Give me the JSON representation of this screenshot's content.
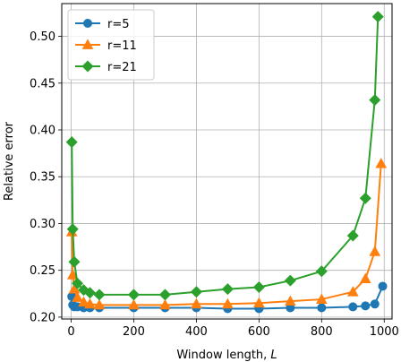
{
  "chart_data": {
    "type": "line",
    "xlabel": "Window length, ",
    "xlabel_var": "L",
    "ylabel": "Relative error",
    "xlim": [
      -30,
      1025
    ],
    "ylim": [
      0.198,
      0.535
    ],
    "xticks": [
      0,
      200,
      400,
      600,
      800,
      1000
    ],
    "xtick_labels": [
      "0",
      "200",
      "400",
      "600",
      "800",
      "1000"
    ],
    "yticks": [
      0.2,
      0.25,
      0.3,
      0.35,
      0.4,
      0.45,
      0.5
    ],
    "ytick_labels": [
      "0.20",
      "0.25",
      "0.30",
      "0.35",
      "0.40",
      "0.45",
      "0.50"
    ],
    "grid": true,
    "legend_position": "top-left",
    "series": [
      {
        "name": "r=5",
        "color": "#1f77b4",
        "marker": "circle",
        "points": [
          [
            2,
            0.222
          ],
          [
            5,
            0.213
          ],
          [
            10,
            0.211
          ],
          [
            20,
            0.211
          ],
          [
            40,
            0.21
          ],
          [
            60,
            0.21
          ],
          [
            90,
            0.21
          ],
          [
            200,
            0.21
          ],
          [
            300,
            0.21
          ],
          [
            400,
            0.21
          ],
          [
            500,
            0.209
          ],
          [
            600,
            0.209
          ],
          [
            700,
            0.21
          ],
          [
            800,
            0.21
          ],
          [
            900,
            0.211
          ],
          [
            940,
            0.212
          ],
          [
            970,
            0.214
          ],
          [
            995,
            0.233
          ]
        ]
      },
      {
        "name": "r=11",
        "color": "#ff7f0e",
        "marker": "triangle",
        "points": [
          [
            2,
            0.291
          ],
          [
            5,
            0.245
          ],
          [
            10,
            0.23
          ],
          [
            20,
            0.221
          ],
          [
            40,
            0.216
          ],
          [
            60,
            0.214
          ],
          [
            90,
            0.213
          ],
          [
            200,
            0.213
          ],
          [
            300,
            0.213
          ],
          [
            400,
            0.214
          ],
          [
            500,
            0.214
          ],
          [
            600,
            0.215
          ],
          [
            700,
            0.217
          ],
          [
            800,
            0.219
          ],
          [
            900,
            0.227
          ],
          [
            940,
            0.241
          ],
          [
            970,
            0.27
          ],
          [
            990,
            0.364
          ]
        ]
      },
      {
        "name": "r=21",
        "color": "#2ca02c",
        "marker": "diamond",
        "points": [
          [
            2,
            0.387
          ],
          [
            5,
            0.294
          ],
          [
            10,
            0.259
          ],
          [
            20,
            0.236
          ],
          [
            40,
            0.229
          ],
          [
            60,
            0.226
          ],
          [
            90,
            0.224
          ],
          [
            200,
            0.224
          ],
          [
            300,
            0.224
          ],
          [
            400,
            0.227
          ],
          [
            500,
            0.23
          ],
          [
            600,
            0.232
          ],
          [
            700,
            0.239
          ],
          [
            800,
            0.249
          ],
          [
            900,
            0.287
          ],
          [
            940,
            0.327
          ],
          [
            970,
            0.432
          ],
          [
            980,
            0.521
          ]
        ]
      }
    ]
  }
}
